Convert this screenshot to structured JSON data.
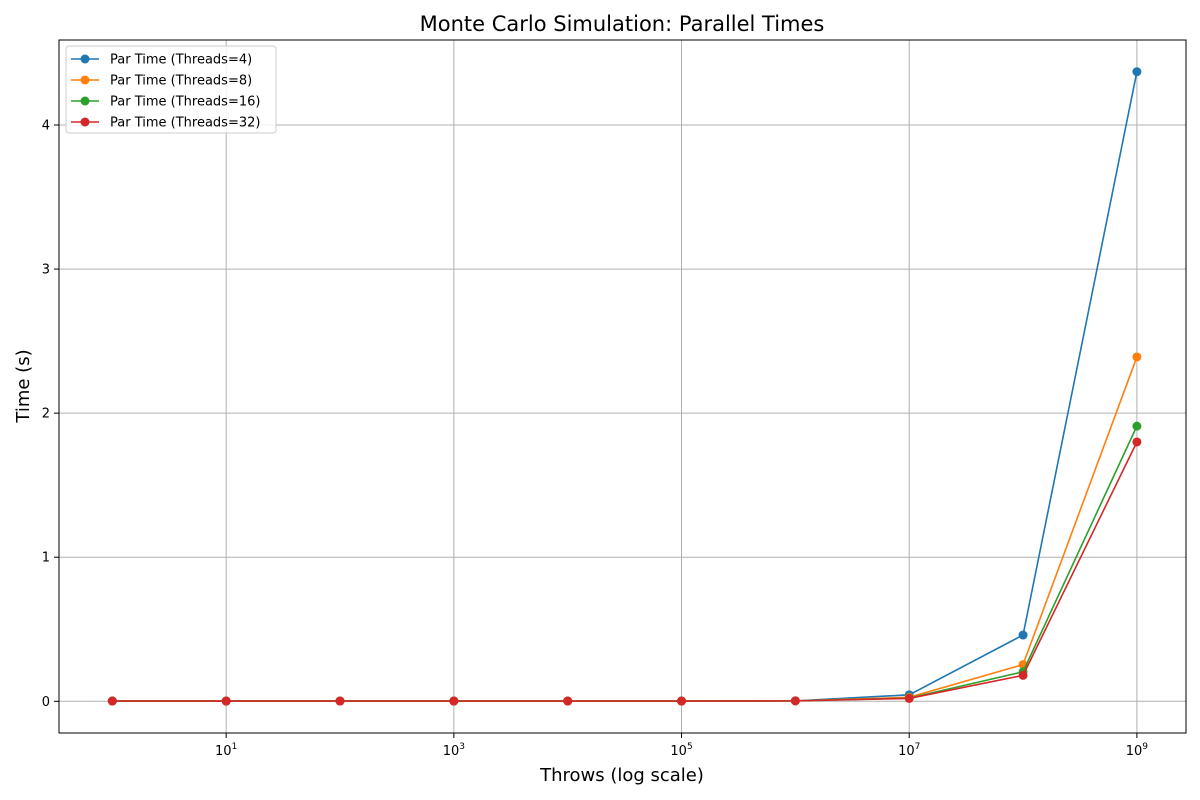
{
  "chart_data": {
    "type": "line",
    "title": "Monte Carlo Simulation: Parallel Times",
    "xlabel": "Throws (log scale)",
    "ylabel": "Time (s)",
    "x_scale": "log",
    "x": [
      1,
      10,
      100,
      1000,
      10000,
      100000,
      1000000,
      10000000,
      100000000,
      1000000000
    ],
    "xlim": [
      0.34,
      2700000000
    ],
    "ylim": [
      -0.22,
      4.59
    ],
    "x_ticks": [
      {
        "base": "10",
        "exp": "1",
        "value": 10
      },
      {
        "base": "10",
        "exp": "3",
        "value": 1000
      },
      {
        "base": "10",
        "exp": "5",
        "value": 100000
      },
      {
        "base": "10",
        "exp": "7",
        "value": 10000000
      },
      {
        "base": "10",
        "exp": "9",
        "value": 1000000000
      }
    ],
    "y_ticks": [
      0,
      1,
      2,
      3,
      4
    ],
    "grid": true,
    "legend_position": "top-left",
    "series": [
      {
        "name": "Par Time (Threads=4)",
        "color": "#1f77b4",
        "values": [
          0.002,
          0.002,
          0.002,
          0.002,
          0.002,
          0.002,
          0.003,
          0.045,
          0.46,
          4.37
        ]
      },
      {
        "name": "Par Time (Threads=8)",
        "color": "#ff7f0e",
        "values": [
          0.002,
          0.002,
          0.002,
          0.002,
          0.002,
          0.002,
          0.003,
          0.028,
          0.255,
          2.39
        ]
      },
      {
        "name": "Par Time (Threads=16)",
        "color": "#2ca02c",
        "values": [
          0.002,
          0.002,
          0.002,
          0.002,
          0.002,
          0.002,
          0.003,
          0.022,
          0.205,
          1.91
        ]
      },
      {
        "name": "Par Time (Threads=32)",
        "color": "#d62728",
        "values": [
          0.002,
          0.002,
          0.002,
          0.002,
          0.002,
          0.002,
          0.003,
          0.02,
          0.18,
          1.8
        ]
      }
    ]
  }
}
